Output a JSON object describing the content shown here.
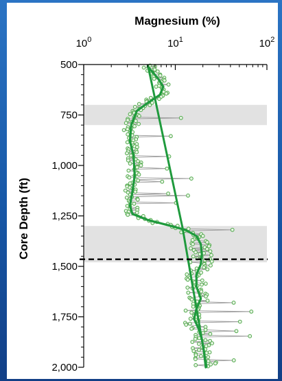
{
  "chart_data": {
    "type": "scatter",
    "title": "Magnesium (%)",
    "xlabel": "Magnesium (%)",
    "ylabel": "Core Depth (ft)",
    "x_scale": "log",
    "x_ticks": [
      {
        "base": "10",
        "exp": "0"
      },
      {
        "base": "10",
        "exp": "1"
      },
      {
        "base": "10",
        "exp": "2"
      }
    ],
    "x_tick_values": [
      1,
      10,
      100
    ],
    "xlim": [
      1,
      100
    ],
    "ylim": [
      500,
      2000
    ],
    "y_inverted": true,
    "y_ticks": [
      "500",
      "750",
      "1,000",
      "1,250",
      "1,500",
      "1,750",
      "2,000"
    ],
    "y_tick_values": [
      500,
      750,
      1000,
      1250,
      1500,
      1750,
      2000
    ],
    "shaded_bands": [
      [
        700,
        800
      ],
      [
        1300,
        1480
      ]
    ],
    "dashed_line_depth": 1465,
    "trend_line": [
      [
        5.0,
        500
      ],
      [
        12.0,
        1310
      ],
      [
        22.0,
        2000
      ]
    ],
    "smooth_curve": [
      [
        5.0,
        510
      ],
      [
        5.6,
        535
      ],
      [
        6.5,
        570
      ],
      [
        7.4,
        610
      ],
      [
        6.8,
        650
      ],
      [
        5.0,
        690
      ],
      [
        3.8,
        730
      ],
      [
        3.3,
        800
      ],
      [
        3.2,
        880
      ],
      [
        3.5,
        950
      ],
      [
        3.6,
        1050
      ],
      [
        3.4,
        1130
      ],
      [
        3.2,
        1200
      ],
      [
        3.4,
        1240
      ],
      [
        5.0,
        1270
      ],
      [
        9.0,
        1300
      ],
      [
        13.0,
        1320
      ],
      [
        17.0,
        1350
      ],
      [
        19.0,
        1390
      ],
      [
        19.5,
        1440
      ],
      [
        19.0,
        1490
      ],
      [
        17.0,
        1540
      ],
      [
        17.0,
        1600
      ],
      [
        19.0,
        1660
      ],
      [
        17.0,
        1710
      ],
      [
        16.0,
        1760
      ],
      [
        18.0,
        1810
      ],
      [
        19.5,
        1860
      ],
      [
        20.5,
        1920
      ],
      [
        21.5,
        2000
      ]
    ],
    "sample_density_per_depth_unit": 0.2,
    "grid": false,
    "legend": "none",
    "colors": {
      "points_stroke": "#4fa84a",
      "points_fill": "#e8f5e4",
      "connector": "#9c9c9c",
      "trend": "#1f9a3d",
      "smooth": "#1f9a3d",
      "band": "#e2e2e2",
      "dashed": "#000000",
      "axis": "#000000"
    }
  }
}
